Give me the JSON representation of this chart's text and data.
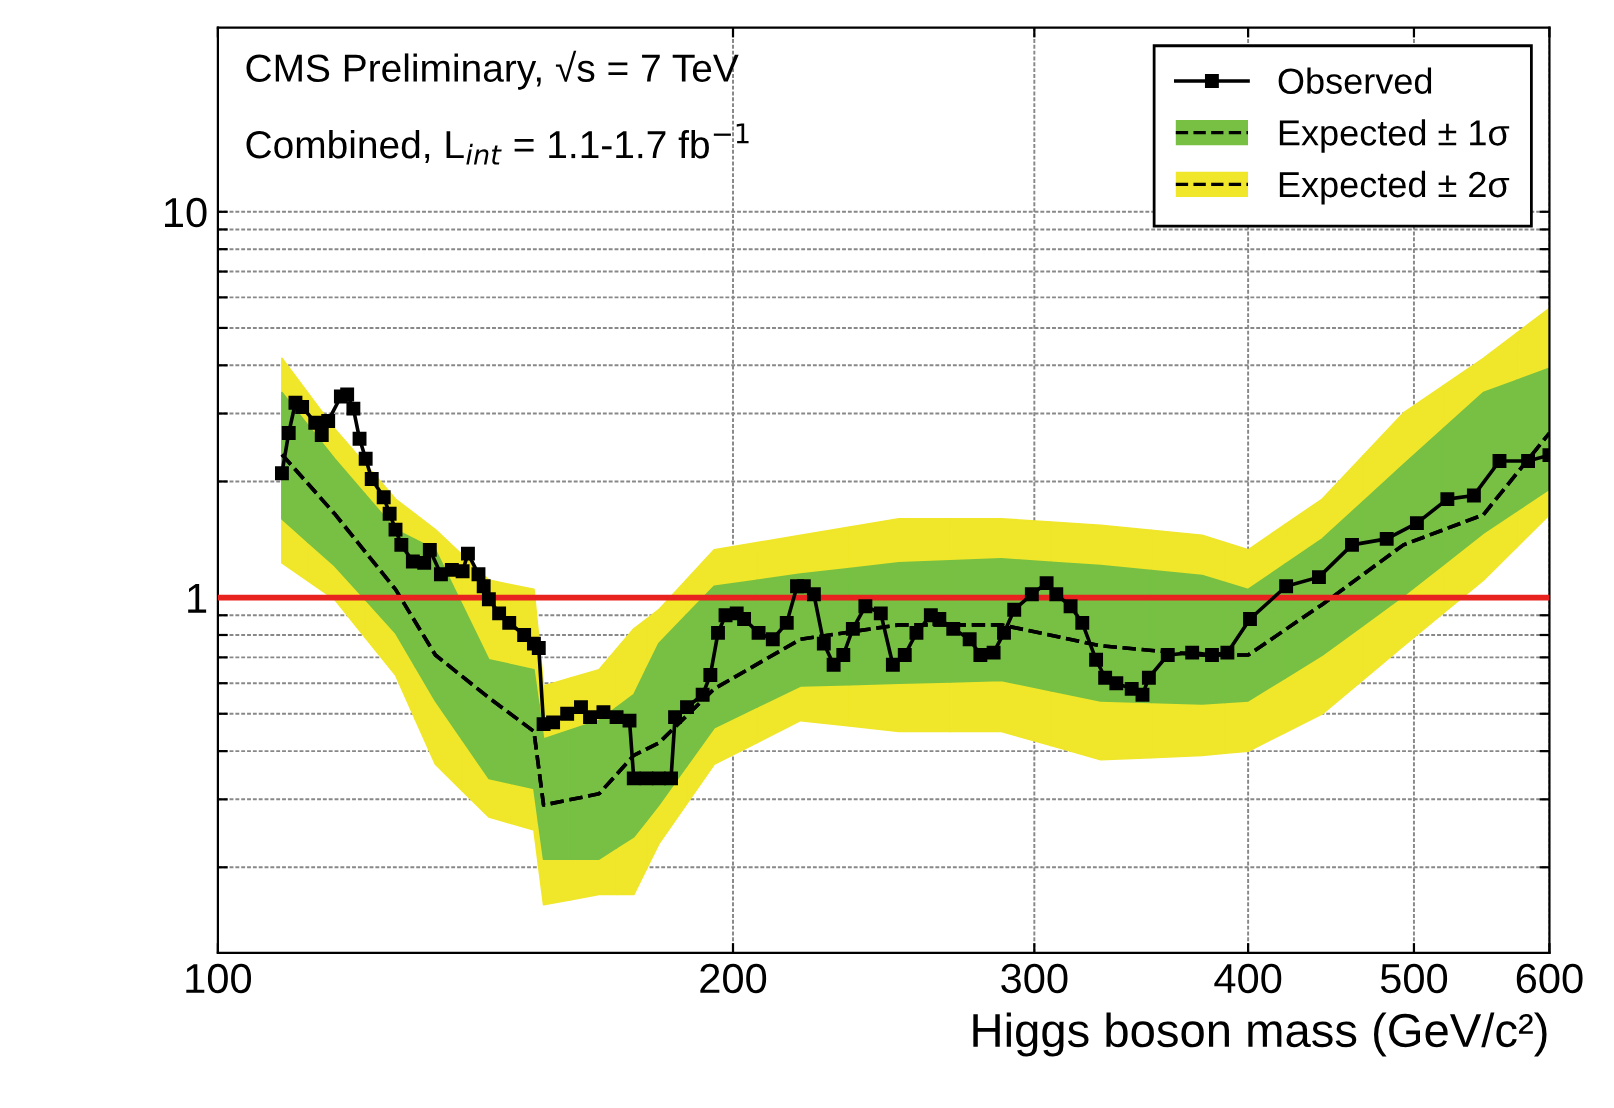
{
  "chart_data": {
    "type": "line",
    "xlabel": "Higgs boson mass (GeV/c²)",
    "annotations": [
      "CMS Preliminary, √s = 7 TeV",
      "Combined, L$_{int}$ = 1.1-1.7 fb$^{−1}$"
    ],
    "log": "xy",
    "xlim": [
      100,
      600
    ],
    "ylim": [
      0.12,
      30
    ],
    "xticks": [
      100,
      200,
      300,
      400,
      500,
      600
    ],
    "yticks": [
      {
        "value": 0.2,
        "label": null
      },
      {
        "value": 0.3,
        "label": null
      },
      {
        "value": 0.4,
        "label": null
      },
      {
        "value": 0.5,
        "label": null
      },
      {
        "value": 0.6,
        "label": null
      },
      {
        "value": 0.7,
        "label": null
      },
      {
        "value": 0.8,
        "label": null
      },
      {
        "value": 0.9,
        "label": null
      },
      1,
      {
        "value": 2,
        "label": null
      },
      {
        "value": 3,
        "label": null
      },
      {
        "value": 4,
        "label": null
      },
      {
        "value": 5,
        "label": null
      },
      {
        "value": 6,
        "label": null
      },
      {
        "value": 7,
        "label": null
      },
      {
        "value": 8,
        "label": null
      },
      {
        "value": 9,
        "label": null
      },
      10
    ],
    "grid": true,
    "legend": "top right",
    "line_style": "dashed",
    "ref_lines": [
      {
        "axis": "y",
        "value": 1,
        "color": "#e8231f"
      }
    ],
    "series": [
      {
        "name": "Expected ± 2σ",
        "type": "line",
        "color": "#000000",
        "colors": [
          "#f0e62a",
          "#f0e62a",
          "#f0e62a",
          "#f0e62a",
          "#f0e62a",
          "#f0e62a",
          "#f0e62a",
          "#f0e62a",
          "#f0e62a",
          "#f0e62a",
          "#f0e62a",
          "#f0e62a",
          "#f0e62a",
          "#f0e62a",
          "#f0e62a",
          "#f0e62a",
          "#f0e62a",
          "#f0e62a",
          "#f0e62a",
          "#f0e62a",
          "#f0e62a"
        ],
        "x": [
          109,
          117,
          127,
          134,
          144,
          153,
          155,
          167,
          175,
          181,
          195,
          219,
          250,
          287,
          328,
          376,
          400,
          442,
          493,
          549,
          600
        ],
        "values": [
          2.35,
          1.65,
          1.05,
          0.71,
          0.55,
          0.45,
          0.29,
          0.31,
          0.39,
          0.42,
          0.58,
          0.78,
          0.85,
          0.85,
          0.75,
          0.71,
          0.71,
          0.96,
          1.37,
          1.64,
          2.67
        ],
        "lower": [
          1.23,
          0.99,
          0.63,
          0.37,
          0.27,
          0.25,
          0.16,
          0.17,
          0.17,
          0.23,
          0.37,
          0.48,
          0.45,
          0.45,
          0.38,
          0.39,
          0.4,
          0.5,
          0.75,
          1.11,
          1.64
        ],
        "upper": [
          4.17,
          2.74,
          1.8,
          1.5,
          1.11,
          1.05,
          0.59,
          0.65,
          0.83,
          0.93,
          1.33,
          1.45,
          1.6,
          1.6,
          1.54,
          1.45,
          1.33,
          1.8,
          3.01,
          4.17,
          5.62
        ]
      },
      {
        "name": "Expected ± 1σ",
        "type": "line",
        "color": "#000000",
        "colors": [
          "#77c043",
          "#77c043",
          "#77c043",
          "#77c043",
          "#77c043",
          "#77c043",
          "#77c043",
          "#77c043",
          "#77c043",
          "#77c043",
          "#77c043",
          "#77c043",
          "#77c043",
          "#77c043",
          "#77c043",
          "#77c043",
          "#77c043",
          "#77c043",
          "#77c043",
          "#77c043",
          "#77c043"
        ],
        "x": [
          109,
          117,
          127,
          134,
          144,
          153,
          155,
          167,
          175,
          181,
          195,
          219,
          250,
          287,
          328,
          376,
          400,
          442,
          493,
          549,
          600
        ],
        "values": [
          2.35,
          1.65,
          1.05,
          0.71,
          0.55,
          0.45,
          0.29,
          0.31,
          0.39,
          0.42,
          0.58,
          0.78,
          0.85,
          0.85,
          0.75,
          0.71,
          0.71,
          0.96,
          1.37,
          1.64,
          2.67
        ],
        "lower": [
          1.6,
          1.21,
          0.81,
          0.54,
          0.34,
          0.32,
          0.21,
          0.21,
          0.24,
          0.29,
          0.46,
          0.59,
          0.6,
          0.61,
          0.54,
          0.53,
          0.54,
          0.71,
          1.01,
          1.47,
          1.91
        ],
        "upper": [
          3.4,
          2.29,
          1.5,
          1.33,
          0.69,
          0.65,
          0.43,
          0.48,
          0.56,
          0.76,
          1.07,
          1.15,
          1.23,
          1.26,
          1.21,
          1.14,
          1.05,
          1.42,
          2.21,
          3.4,
          3.93
        ]
      },
      {
        "name": "Observed",
        "color": "#000000",
        "line_style": "solid",
        "marker": "square",
        "x": [
          109,
          110,
          111,
          112,
          114,
          115,
          116,
          118,
          119,
          120,
          121,
          122,
          123,
          125,
          126,
          127,
          128,
          130,
          132,
          133,
          135,
          137,
          139,
          140,
          142,
          143,
          144,
          146,
          148,
          151,
          153,
          154,
          155,
          157,
          160,
          163,
          165,
          168,
          171,
          174,
          175,
          178,
          181,
          184,
          185,
          188,
          192,
          194,
          196,
          198,
          201,
          203,
          207,
          211,
          215,
          218,
          220,
          223,
          226,
          229,
          232,
          235,
          239,
          244,
          248,
          252,
          256,
          261,
          264,
          269,
          275,
          279,
          284,
          288,
          292,
          299,
          305,
          309,
          315,
          320,
          326,
          330,
          335,
          342,
          347,
          350,
          359,
          371,
          381,
          389,
          401,
          421,
          440,
          460,
          482,
          502,
          523,
          542,
          561,
          583,
          600
        ],
        "values": [
          2.1,
          2.67,
          3.2,
          3.12,
          2.84,
          2.64,
          2.87,
          3.32,
          3.36,
          3.09,
          2.58,
          2.29,
          2.03,
          1.82,
          1.65,
          1.5,
          1.37,
          1.24,
          1.23,
          1.33,
          1.15,
          1.18,
          1.17,
          1.3,
          1.15,
          1.07,
          0.99,
          0.91,
          0.86,
          0.8,
          0.76,
          0.74,
          0.47,
          0.475,
          0.5,
          0.52,
          0.49,
          0.505,
          0.49,
          0.48,
          0.34,
          0.34,
          0.34,
          0.34,
          0.49,
          0.52,
          0.56,
          0.63,
          0.81,
          0.9,
          0.91,
          0.88,
          0.81,
          0.78,
          0.86,
          1.07,
          1.07,
          1.02,
          0.76,
          0.67,
          0.71,
          0.83,
          0.95,
          0.91,
          0.67,
          0.71,
          0.81,
          0.9,
          0.88,
          0.83,
          0.78,
          0.71,
          0.72,
          0.81,
          0.93,
          1.02,
          1.09,
          1.02,
          0.95,
          0.86,
          0.69,
          0.62,
          0.6,
          0.58,
          0.56,
          0.62,
          0.71,
          0.72,
          0.71,
          0.72,
          0.88,
          1.07,
          1.13,
          1.37,
          1.42,
          1.56,
          1.8,
          1.84,
          2.26,
          2.26,
          2.34
        ]
      }
    ]
  }
}
